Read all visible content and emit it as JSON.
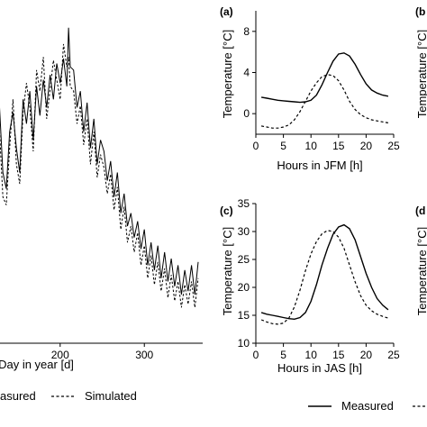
{
  "chart_data": [
    {
      "type": "line",
      "panel": "",
      "xlabel": "Day in year [d]",
      "ylabel": "",
      "xlim": [
        120,
        380
      ],
      "ylim": [
        0,
        20
      ],
      "xticks": [
        200,
        300
      ],
      "series": [
        {
          "name": "Measured",
          "style": "solid",
          "x": [
            120,
            124,
            128,
            132,
            136,
            140,
            144,
            148,
            152,
            156,
            160,
            164,
            168,
            172,
            176,
            180,
            184,
            188,
            192,
            196,
            200,
            204,
            208,
            210,
            212,
            216,
            220,
            224,
            228,
            232,
            236,
            240,
            244,
            248,
            252,
            256,
            260,
            264,
            268,
            272,
            276,
            280,
            284,
            288,
            292,
            296,
            300,
            304,
            308,
            312,
            316,
            320,
            324,
            328,
            332,
            336,
            340,
            344,
            348,
            352,
            356,
            360,
            364
          ],
          "y": [
            13.5,
            11.0,
            14.5,
            10.5,
            9.5,
            13.0,
            14.2,
            12.0,
            10.5,
            15.0,
            13.5,
            15.5,
            12.5,
            15.8,
            14.0,
            16.2,
            14.5,
            16.5,
            15.0,
            17.2,
            16.0,
            17.5,
            15.8,
            19.4,
            17.0,
            16.8,
            14.5,
            15.5,
            13.0,
            14.8,
            12.0,
            13.8,
            11.0,
            12.5,
            11.8,
            10.0,
            11.2,
            9.0,
            10.5,
            8.0,
            9.2,
            7.2,
            8.0,
            6.5,
            7.5,
            5.8,
            7.0,
            4.8,
            6.2,
            4.5,
            6.0,
            4.0,
            5.6,
            3.8,
            5.2,
            3.5,
            4.8,
            3.0,
            4.5,
            3.2,
            4.8,
            3.0,
            5.0
          ]
        },
        {
          "name": "Simulated",
          "style": "dashed",
          "x": [
            120,
            124,
            128,
            132,
            136,
            140,
            144,
            148,
            152,
            156,
            160,
            164,
            168,
            172,
            176,
            180,
            184,
            188,
            192,
            196,
            200,
            204,
            208,
            210,
            212,
            216,
            220,
            224,
            228,
            232,
            236,
            240,
            244,
            248,
            252,
            256,
            260,
            264,
            268,
            272,
            276,
            280,
            284,
            288,
            292,
            296,
            300,
            304,
            308,
            312,
            316,
            320,
            324,
            328,
            332,
            336,
            340,
            344,
            348,
            352,
            356,
            360,
            364
          ],
          "y": [
            12.0,
            10.0,
            13.0,
            9.0,
            8.5,
            12.0,
            15.0,
            11.0,
            9.8,
            14.2,
            16.0,
            14.5,
            11.8,
            16.8,
            15.5,
            17.6,
            13.8,
            15.6,
            17.4,
            16.2,
            15.0,
            18.4,
            17.0,
            17.6,
            15.8,
            15.5,
            13.5,
            14.6,
            12.2,
            13.8,
            11.0,
            13.0,
            10.2,
            11.6,
            10.8,
            9.2,
            10.4,
            8.2,
            9.6,
            7.0,
            8.4,
            6.2,
            7.2,
            5.6,
            6.8,
            4.8,
            6.0,
            4.0,
            5.4,
            3.6,
            5.0,
            3.2,
            4.6,
            2.8,
            4.2,
            2.6,
            3.8,
            2.2,
            3.6,
            2.4,
            3.8,
            2.2,
            4.0
          ]
        }
      ]
    },
    {
      "type": "line",
      "panel": "(a)",
      "xlabel": "Hours in JFM [h]",
      "ylabel": "Temperature [°C]",
      "xlim": [
        0,
        25
      ],
      "ylim": [
        -2,
        10
      ],
      "xticks": [
        0,
        5,
        10,
        15,
        20,
        25
      ],
      "yticks": [
        0,
        4,
        8
      ],
      "series": [
        {
          "name": "Measured",
          "style": "solid",
          "x": [
            1,
            2,
            3,
            4,
            5,
            6,
            7,
            8,
            9,
            10,
            11,
            12,
            13,
            14,
            15,
            16,
            17,
            18,
            19,
            20,
            21,
            22,
            23,
            24
          ],
          "y": [
            1.6,
            1.5,
            1.4,
            1.3,
            1.25,
            1.2,
            1.15,
            1.1,
            1.15,
            1.3,
            1.8,
            2.8,
            4.0,
            5.1,
            5.8,
            5.9,
            5.6,
            4.8,
            3.8,
            2.9,
            2.3,
            2.0,
            1.8,
            1.7
          ]
        },
        {
          "name": "Simulated",
          "style": "dashed",
          "x": [
            1,
            2,
            3,
            4,
            5,
            6,
            7,
            8,
            9,
            10,
            11,
            12,
            13,
            14,
            15,
            16,
            17,
            18,
            19,
            20,
            21,
            22,
            23,
            24
          ],
          "y": [
            -1.2,
            -1.3,
            -1.4,
            -1.4,
            -1.3,
            -1.1,
            -0.6,
            0.2,
            1.2,
            2.2,
            3.0,
            3.6,
            3.8,
            3.7,
            3.2,
            2.3,
            1.2,
            0.4,
            -0.1,
            -0.4,
            -0.6,
            -0.7,
            -0.8,
            -0.9
          ]
        }
      ]
    },
    {
      "type": "line",
      "panel": "(c)",
      "xlabel": "Hours in JAS [h]",
      "ylabel": "Temperature [°C]",
      "xlim": [
        0,
        25
      ],
      "ylim": [
        10,
        35
      ],
      "xticks": [
        0,
        5,
        10,
        15,
        20,
        25
      ],
      "yticks": [
        10,
        15,
        20,
        25,
        30,
        35
      ],
      "series": [
        {
          "name": "Measured",
          "style": "solid",
          "x": [
            1,
            2,
            3,
            4,
            5,
            6,
            7,
            8,
            9,
            10,
            11,
            12,
            13,
            14,
            15,
            16,
            17,
            18,
            19,
            20,
            21,
            22,
            23,
            24
          ],
          "y": [
            15.5,
            15.2,
            15.0,
            14.8,
            14.6,
            14.4,
            14.3,
            14.6,
            15.5,
            17.5,
            20.5,
            24.0,
            27.0,
            29.5,
            30.8,
            31.2,
            30.5,
            28.5,
            25.5,
            22.5,
            20.0,
            18.0,
            16.8,
            16.0
          ]
        },
        {
          "name": "Simulated",
          "style": "dashed",
          "x": [
            1,
            2,
            3,
            4,
            5,
            6,
            7,
            8,
            9,
            10,
            11,
            12,
            13,
            14,
            15,
            16,
            17,
            18,
            19,
            20,
            21,
            22,
            23,
            24
          ],
          "y": [
            14.2,
            13.8,
            13.5,
            13.4,
            13.6,
            14.5,
            16.5,
            19.5,
            23.0,
            26.0,
            28.2,
            29.6,
            30.2,
            30.0,
            29.0,
            27.0,
            24.0,
            21.0,
            18.5,
            16.8,
            15.8,
            15.2,
            14.8,
            14.5
          ]
        }
      ]
    }
  ],
  "legend_left": {
    "measured": "asured",
    "simulated": "Simulated"
  },
  "legend_right": {
    "measured": "Measured"
  },
  "partial_labels": {
    "b": "(b",
    "d": "(d",
    "y_b": "Temperature [°C]",
    "y_d": "Temperature [°C]",
    "left_xlabel": "Day in year [d]"
  }
}
